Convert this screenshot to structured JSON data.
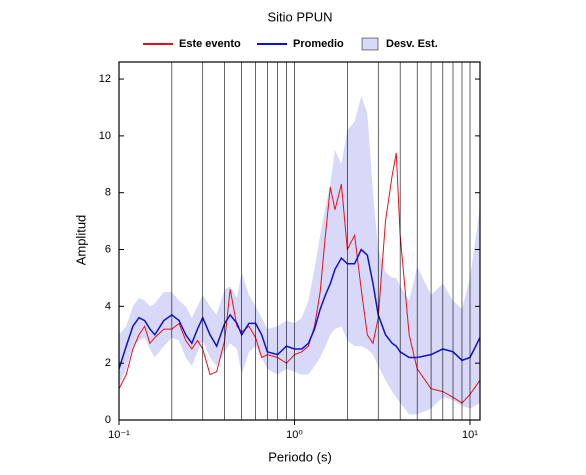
{
  "chart_data": {
    "type": "line",
    "title": "Sitio PPUN",
    "x_label": "Periodo (s)",
    "y_label": "Amplitud",
    "xscale": "log",
    "x": [
      0.1,
      0.11,
      0.12,
      0.13,
      0.14,
      0.15,
      0.16,
      0.18,
      0.2,
      0.22,
      0.24,
      0.26,
      0.28,
      0.3,
      0.33,
      0.36,
      0.4,
      0.43,
      0.47,
      0.5,
      0.55,
      0.6,
      0.65,
      0.7,
      0.8,
      0.9,
      1.0,
      1.1,
      1.2,
      1.3,
      1.4,
      1.5,
      1.6,
      1.7,
      1.85,
      2.0,
      2.2,
      2.4,
      2.6,
      2.8,
      3.0,
      3.3,
      3.6,
      3.8,
      4.0,
      4.5,
      5.0,
      6.0,
      7.0,
      8.0,
      9.0,
      10,
      11.4
    ],
    "series": [
      {
        "name": "Este evento",
        "color": "#e8101c",
        "values": [
          1.1,
          1.6,
          2.5,
          3.0,
          3.3,
          2.7,
          2.9,
          3.2,
          3.2,
          3.4,
          2.8,
          2.5,
          2.8,
          2.5,
          1.6,
          1.7,
          2.8,
          4.6,
          3.3,
          3.1,
          3.3,
          2.9,
          2.2,
          2.3,
          2.2,
          2.0,
          2.3,
          2.4,
          2.6,
          3.3,
          4.5,
          6.5,
          8.2,
          7.4,
          8.3,
          6.0,
          6.5,
          4.6,
          3.0,
          2.7,
          3.6,
          7.0,
          8.6,
          9.4,
          6.5,
          3.0,
          1.8,
          1.1,
          1.0,
          0.8,
          0.6,
          0.9,
          1.4
        ]
      },
      {
        "name": "Promedio",
        "color": "#1010d0",
        "values": [
          1.8,
          2.6,
          3.3,
          3.6,
          3.5,
          3.2,
          3.0,
          3.5,
          3.7,
          3.5,
          3.0,
          2.7,
          3.2,
          3.6,
          3.0,
          2.6,
          3.4,
          3.7,
          3.4,
          3.0,
          3.4,
          3.4,
          3.0,
          2.4,
          2.3,
          2.6,
          2.5,
          2.5,
          2.7,
          3.2,
          3.9,
          4.4,
          4.8,
          5.3,
          5.7,
          5.5,
          5.5,
          6.0,
          5.8,
          4.8,
          3.7,
          3.0,
          2.7,
          2.6,
          2.4,
          2.2,
          2.2,
          2.3,
          2.5,
          2.4,
          2.1,
          2.2,
          2.9
        ]
      }
    ],
    "band": {
      "name": "Desv. Est.",
      "color": "#d8d8f8",
      "lower": [
        1.2,
        1.8,
        2.6,
        2.8,
        2.9,
        2.5,
        2.2,
        2.6,
        2.9,
        2.8,
        2.2,
        1.9,
        2.4,
        2.8,
        2.2,
        1.9,
        2.4,
        2.7,
        2.5,
        1.6,
        2.4,
        2.6,
        2.2,
        1.8,
        1.6,
        1.8,
        1.7,
        1.6,
        1.6,
        1.9,
        2.2,
        2.6,
        3.0,
        3.2,
        3.3,
        2.8,
        2.6,
        2.6,
        2.5,
        2.3,
        1.9,
        1.4,
        1.0,
        0.8,
        0.6,
        0.2,
        0.2,
        0.4,
        0.8,
        0.7,
        0.5,
        0.4,
        0.6
      ],
      "upper": [
        3.0,
        3.3,
        4.0,
        4.3,
        4.2,
        4.0,
        4.1,
        4.5,
        4.5,
        4.2,
        4.0,
        3.6,
        4.0,
        4.4,
        4.0,
        3.7,
        4.6,
        4.7,
        4.3,
        5.2,
        4.4,
        4.0,
        3.6,
        3.2,
        3.3,
        3.5,
        3.4,
        3.6,
        4.2,
        5.3,
        6.5,
        7.5,
        8.3,
        9.5,
        9.0,
        10.2,
        10.5,
        11.4,
        10.8,
        8.0,
        6.0,
        5.2,
        5.0,
        5.0,
        4.7,
        4.2,
        5.4,
        4.4,
        4.8,
        4.2,
        3.9,
        5.0,
        7.5
      ]
    },
    "xlim": [
      0.1,
      11.4
    ],
    "ylim": [
      0,
      12.6
    ],
    "xticks": [
      {
        "value": 0.1,
        "label": "10⁻¹"
      },
      {
        "value": 1,
        "label": "10⁰"
      },
      {
        "value": 10,
        "label": "10¹"
      }
    ],
    "xminor": [
      0.2,
      0.3,
      0.4,
      0.5,
      0.6,
      0.7,
      0.8,
      0.9,
      2,
      3,
      4,
      5,
      6,
      7,
      8,
      9
    ],
    "yticks": [
      0,
      2,
      4,
      6,
      8,
      10,
      12
    ],
    "grid": true
  }
}
